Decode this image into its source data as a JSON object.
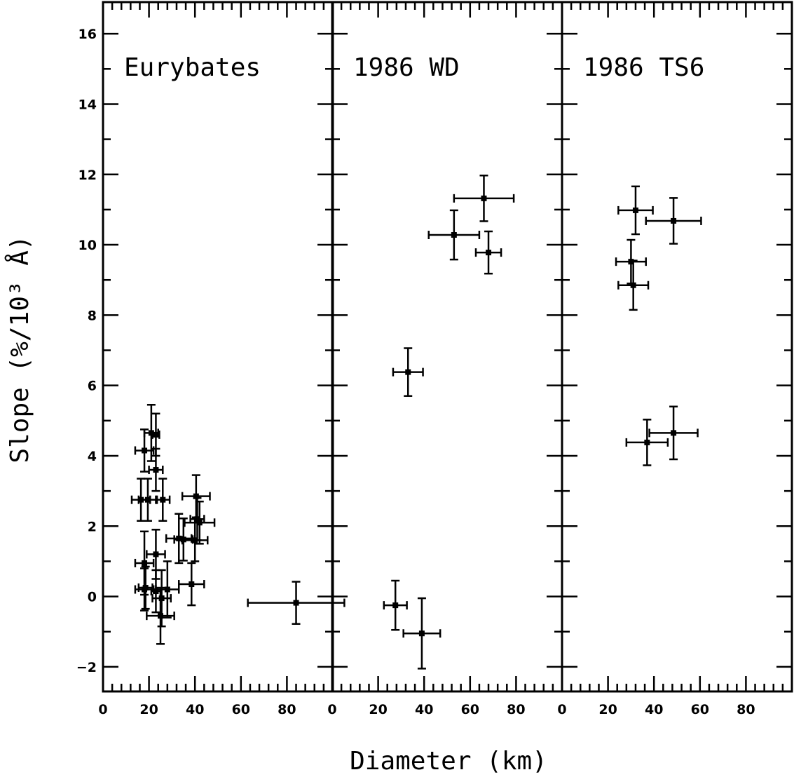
{
  "chart_data": {
    "type": "scatter",
    "ylabel": "Slope (%/10³ Å)",
    "xlabel": "Diameter (km)",
    "ylim": [
      -2.7,
      16.9
    ],
    "xlim": [
      0,
      100
    ],
    "y_ticks": [
      -2,
      0,
      2,
      4,
      6,
      8,
      10,
      12,
      14,
      16
    ],
    "x_ticks": [
      0,
      20,
      40,
      60,
      80
    ],
    "x_tick_labels": [
      "0",
      "20",
      "40",
      "60",
      "80"
    ],
    "error_bars": true,
    "panels": [
      {
        "title": "Eurybates",
        "points": [
          {
            "x": 18,
            "y": 4.15,
            "xerr": 4,
            "yerr": 0.6
          },
          {
            "x": 21,
            "y": 4.65,
            "xerr": 3,
            "yerr": 0.8
          },
          {
            "x": 23,
            "y": 4.6,
            "xerr": 1.5,
            "yerr": 0.6
          },
          {
            "x": 23,
            "y": 3.6,
            "xerr": 3,
            "yerr": 0.6
          },
          {
            "x": 16.5,
            "y": 2.75,
            "xerr": 4,
            "yerr": 0.6
          },
          {
            "x": 19.5,
            "y": 2.75,
            "xerr": 4,
            "yerr": 0.6
          },
          {
            "x": 26,
            "y": 2.75,
            "xerr": 3,
            "yerr": 0.6
          },
          {
            "x": 40.5,
            "y": 2.85,
            "xerr": 6,
            "yerr": 0.6
          },
          {
            "x": 41,
            "y": 2.2,
            "xerr": 3,
            "yerr": 0.6
          },
          {
            "x": 42,
            "y": 2.1,
            "xerr": 6.5,
            "yerr": 0.6
          },
          {
            "x": 33,
            "y": 1.65,
            "xerr": 5.5,
            "yerr": 0.7
          },
          {
            "x": 35,
            "y": 1.62,
            "xerr": 4,
            "yerr": 0.6
          },
          {
            "x": 40,
            "y": 1.6,
            "xerr": 5.5,
            "yerr": 0.6
          },
          {
            "x": 23,
            "y": 1.2,
            "xerr": 4,
            "yerr": 0.7
          },
          {
            "x": 18,
            "y": 0.95,
            "xerr": 4,
            "yerr": 0.9
          },
          {
            "x": 18,
            "y": 0.2,
            "xerr": 4,
            "yerr": 0.6
          },
          {
            "x": 18.5,
            "y": 0.25,
            "xerr": 3,
            "yerr": 0.6
          },
          {
            "x": 23,
            "y": 0.15,
            "xerr": 2,
            "yerr": 0.6
          },
          {
            "x": 28,
            "y": 0.2,
            "xerr": 5,
            "yerr": 0.8
          },
          {
            "x": 38.5,
            "y": 0.35,
            "xerr": 5.5,
            "yerr": 0.6
          },
          {
            "x": 25.5,
            "y": -0.05,
            "xerr": 4,
            "yerr": 0.8
          },
          {
            "x": 25,
            "y": -0.55,
            "xerr": 6,
            "yerr": 0.8
          },
          {
            "x": 84,
            "y": -0.18,
            "xerr": 21,
            "yerr": 0.6
          }
        ]
      },
      {
        "title": "1986 WD",
        "points": [
          {
            "x": 66,
            "y": 11.32,
            "xerr": 13,
            "yerr": 0.65
          },
          {
            "x": 53,
            "y": 10.28,
            "xerr": 11,
            "yerr": 0.7
          },
          {
            "x": 68,
            "y": 9.78,
            "xerr": 5.5,
            "yerr": 0.6
          },
          {
            "x": 33,
            "y": 6.38,
            "xerr": 6.5,
            "yerr": 0.68
          },
          {
            "x": 27.5,
            "y": -0.25,
            "xerr": 5,
            "yerr": 0.7
          },
          {
            "x": 39,
            "y": -1.05,
            "xerr": 8,
            "yerr": 1.0
          }
        ]
      },
      {
        "title": "1986 TS6",
        "points": [
          {
            "x": 32,
            "y": 10.98,
            "xerr": 7.5,
            "yerr": 0.68
          },
          {
            "x": 48.5,
            "y": 10.68,
            "xerr": 12,
            "yerr": 0.65
          },
          {
            "x": 30,
            "y": 9.52,
            "xerr": 6.5,
            "yerr": 0.62
          },
          {
            "x": 31,
            "y": 8.85,
            "xerr": 6.5,
            "yerr": 0.7
          },
          {
            "x": 37,
            "y": 4.38,
            "xerr": 9,
            "yerr": 0.65
          },
          {
            "x": 48.5,
            "y": 4.65,
            "xerr": 10.5,
            "yerr": 0.75
          }
        ]
      }
    ]
  }
}
